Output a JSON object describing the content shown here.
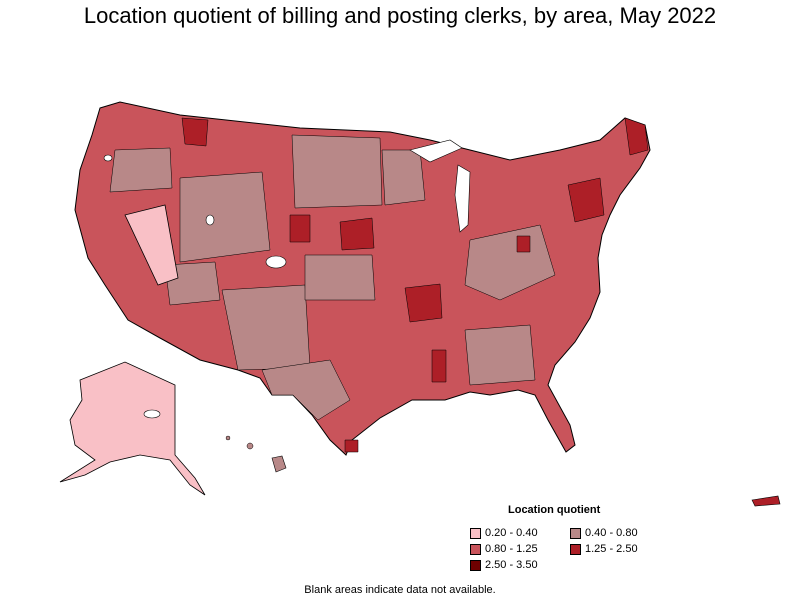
{
  "title": "Location quotient of billing and posting clerks, by area, May 2022",
  "legend": {
    "title": "Location quotient",
    "items": [
      {
        "label": "0.20 - 0.40",
        "color": "#f9c0c6"
      },
      {
        "label": "0.40 - 0.80",
        "color": "#b88888"
      },
      {
        "label": "0.80 - 1.25",
        "color": "#c9545b"
      },
      {
        "label": "1.25 - 2.50",
        "color": "#ad1f27"
      },
      {
        "label": "2.50 - 3.50",
        "color": "#6e0000"
      }
    ]
  },
  "footnote": "Blank areas indicate data not available.",
  "colors": {
    "background": "#ffffff",
    "border": "#000000",
    "blank": "#ffffff"
  }
}
